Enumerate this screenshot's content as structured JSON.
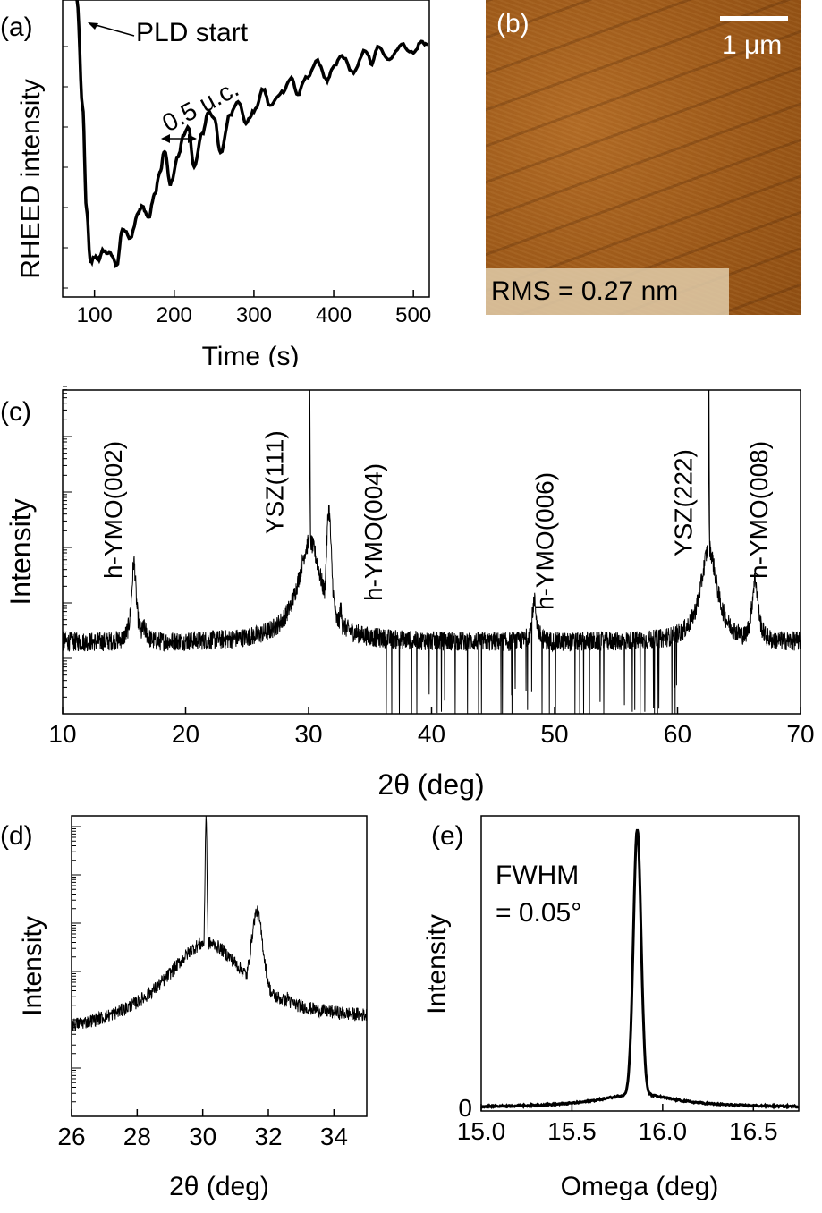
{
  "chart_data": [
    {
      "panel": "(a)",
      "type": "line",
      "title": "",
      "xlabel": "Time (s)",
      "ylabel": "RHEED intensity",
      "xlim": [
        60,
        520
      ],
      "ylim": [
        0,
        1
      ],
      "xticks": [
        "100",
        "200",
        "300",
        "400",
        "500"
      ],
      "xtick_values": [
        100,
        200,
        300,
        400,
        500
      ],
      "annotations": [
        "PLD start",
        "0.5 u.c."
      ],
      "series": [
        {
          "name": "RHEED",
          "x": [
            78,
            85,
            90,
            95,
            100,
            105,
            110,
            120,
            128,
            135,
            145,
            155,
            160,
            168,
            175,
            182,
            188,
            195,
            205,
            212,
            218,
            225,
            235,
            243,
            250,
            258,
            270,
            280,
            290,
            300,
            312,
            320,
            335,
            347,
            355,
            365,
            380,
            392,
            400,
            410,
            425,
            440,
            448,
            455,
            470,
            485,
            500,
            510,
            518
          ],
          "y": [
            1.0,
            0.62,
            0.25,
            0.06,
            0.08,
            0.07,
            0.1,
            0.09,
            0.05,
            0.18,
            0.15,
            0.24,
            0.26,
            0.22,
            0.3,
            0.38,
            0.46,
            0.34,
            0.44,
            0.52,
            0.54,
            0.4,
            0.52,
            0.6,
            0.58,
            0.45,
            0.59,
            0.64,
            0.56,
            0.6,
            0.68,
            0.62,
            0.67,
            0.72,
            0.66,
            0.72,
            0.78,
            0.71,
            0.76,
            0.8,
            0.74,
            0.82,
            0.77,
            0.83,
            0.79,
            0.84,
            0.81,
            0.85,
            0.84
          ]
        }
      ]
    },
    {
      "panel": "(c)",
      "type": "line",
      "xlabel": "2θ (deg)",
      "ylabel": "Intensity",
      "xlim": [
        10,
        70
      ],
      "y_scale": "log",
      "xticks": [
        "10",
        "20",
        "30",
        "40",
        "50",
        "60",
        "70"
      ],
      "xtick_values": [
        10,
        20,
        30,
        40,
        50,
        60,
        70
      ],
      "peak_labels": [
        {
          "text": "h-YMO(002)",
          "x": 15.8
        },
        {
          "text": "YSZ(111)",
          "x": 30.1
        },
        {
          "text": "h-YMO(004)",
          "x": 31.6
        },
        {
          "text": "h-YMO(006)",
          "x": 48.3
        },
        {
          "text": "YSZ(222)",
          "x": 62.6
        },
        {
          "text": "h-YMO(008)",
          "x": 66.3
        }
      ],
      "peaks": [
        {
          "x": 15.8,
          "height": 1.45,
          "width": 0.22
        },
        {
          "x": 16.6,
          "height": 0.25,
          "width": 0.3
        },
        {
          "x": 30.1,
          "height": 4.5,
          "width": 0.05
        },
        {
          "x": 30.9,
          "height": 1.1,
          "width": 0.15
        },
        {
          "x": 31.65,
          "height": 2.4,
          "width": 0.28
        },
        {
          "x": 32.6,
          "height": 0.6,
          "width": 0.15
        },
        {
          "x": 48.35,
          "height": 0.75,
          "width": 0.22
        },
        {
          "x": 62.55,
          "height": 4.8,
          "width": 0.045
        },
        {
          "x": 66.3,
          "height": 1.15,
          "width": 0.3
        }
      ],
      "broad_peaks": [
        {
          "x": 30.1,
          "height": 1.8,
          "width": 1.2
        },
        {
          "x": 62.55,
          "height": 1.7,
          "width": 0.8
        }
      ]
    },
    {
      "panel": "(d)",
      "type": "line",
      "xlabel": "2θ (deg)",
      "ylabel": "Intensity",
      "xlim": [
        26,
        35
      ],
      "y_scale": "log",
      "xticks": [
        "26",
        "28",
        "30",
        "32",
        "34"
      ],
      "xtick_values": [
        26,
        28,
        30,
        32,
        34
      ]
    },
    {
      "panel": "(e)",
      "type": "line",
      "xlabel": "Omega (deg)",
      "ylabel": "Intensity",
      "xlim": [
        15.0,
        16.75
      ],
      "ylim": [
        0,
        1.1
      ],
      "xticks": [
        "15.0",
        "15.5",
        "16.0",
        "16.5"
      ],
      "xtick_values": [
        15.0,
        15.5,
        16.0,
        16.5
      ],
      "yticks": [
        "0"
      ],
      "annotation_line1": "FWHM",
      "annotation_line2": "= 0.05°",
      "peak_center": 15.86,
      "fwhm": 0.05,
      "peak_height": 1.0
    }
  ],
  "afm": {
    "panel": "(b)",
    "scale_label": "1 μm",
    "rms_label": "RMS = 0.27 nm"
  }
}
